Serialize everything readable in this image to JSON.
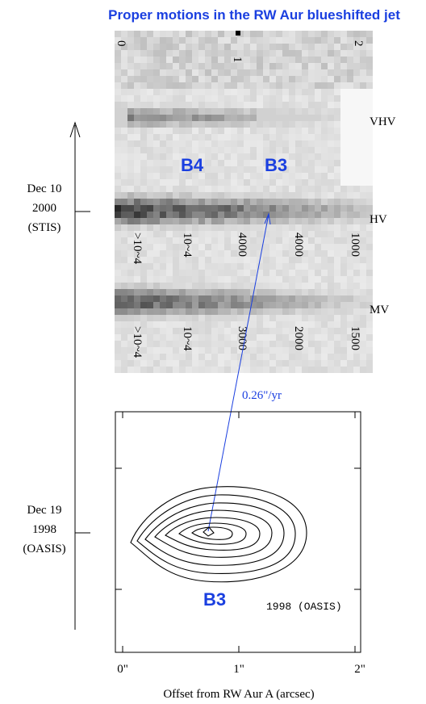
{
  "title": "Proper motions in the RW Aur blueshifted jet",
  "image": {
    "top_ticks": [
      "0",
      "1",
      "2"
    ],
    "band_labels": [
      "VHV",
      "HV",
      "MV"
    ],
    "knot_labels": [
      "B4",
      "B3"
    ],
    "hv_scale": [
      ">10~4",
      "10~4",
      "4000",
      "4000",
      "1000"
    ],
    "mv_scale": [
      ">10~4",
      "10~4",
      "3000",
      "2000",
      "1500"
    ]
  },
  "annotation": "0.26\"/yr",
  "epochs": [
    {
      "lines": [
        "Dec 10",
        "2000",
        "(STIS)"
      ]
    },
    {
      "lines": [
        "Dec 19",
        "1998",
        "(OASIS)"
      ]
    }
  ],
  "contour": {
    "knot": "B3",
    "epoch": "1998 (OASIS)",
    "xticks": [
      "0\"",
      "1\"",
      "2\""
    ],
    "xlabel": "Offset from RW Aur A (arcsec)"
  }
}
